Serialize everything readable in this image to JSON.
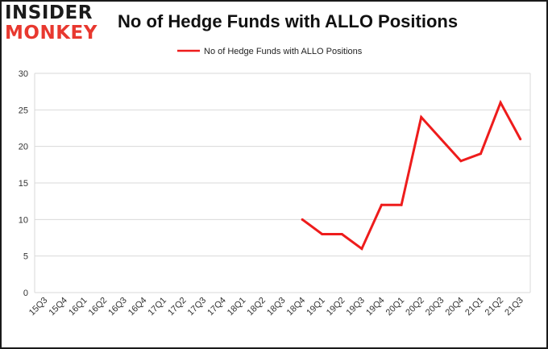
{
  "logo": {
    "line1": "INSIDER",
    "line2": "MONKEY"
  },
  "chart_data": {
    "type": "line",
    "title": "No of Hedge Funds with ALLO Positions",
    "xlabel": "",
    "ylabel": "",
    "categories": [
      "15Q3",
      "15Q4",
      "16Q1",
      "16Q2",
      "16Q3",
      "16Q4",
      "17Q1",
      "17Q2",
      "17Q3",
      "17Q4",
      "18Q1",
      "18Q2",
      "18Q3",
      "18Q4",
      "19Q1",
      "19Q2",
      "19Q3",
      "19Q4",
      "20Q1",
      "20Q2",
      "20Q3",
      "20Q4",
      "21Q1",
      "21Q2",
      "21Q3"
    ],
    "series": [
      {
        "name": "No of Hedge Funds with ALLO Positions",
        "color": "#ee1c1c",
        "values": [
          null,
          null,
          null,
          null,
          null,
          null,
          null,
          null,
          null,
          null,
          null,
          null,
          null,
          10,
          8,
          8,
          6,
          12,
          12,
          24,
          21,
          18,
          19,
          26,
          21
        ]
      }
    ],
    "ylim": [
      0,
      30
    ],
    "yticks": [
      0,
      5,
      10,
      15,
      20,
      25,
      30
    ],
    "grid": true,
    "legend": "top-center"
  }
}
